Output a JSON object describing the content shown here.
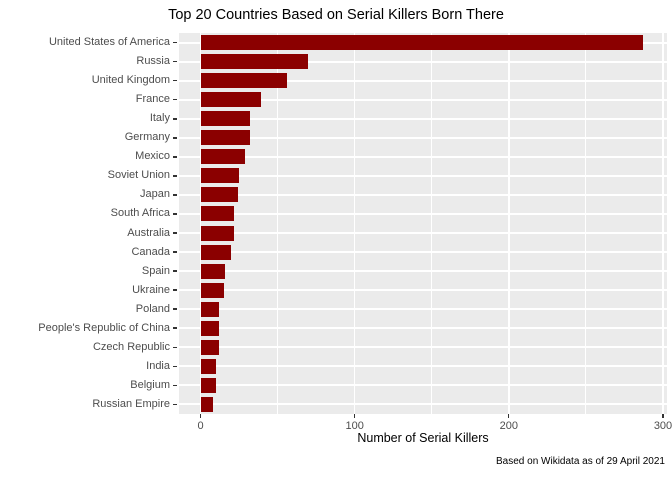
{
  "title": "Top 20 Countries Based on Serial Killers Born There",
  "chart_data": {
    "type": "bar",
    "orientation": "horizontal",
    "title": "Top 20 Countries Based on Serial Killers Born There",
    "xlabel": "Number of Serial Killers",
    "ylabel": "",
    "caption": "Based on Wikidata as of 29 April 2021",
    "categories": [
      "United States of America",
      "Russia",
      "United Kingdom",
      "France",
      "Italy",
      "Germany",
      "Mexico",
      "Soviet Union",
      "Japan",
      "South Africa",
      "Australia",
      "Canada",
      "Spain",
      "Ukraine",
      "Poland",
      "People's Republic of China",
      "Czech Republic",
      "India",
      "Belgium",
      "Russian Empire"
    ],
    "values": [
      287,
      70,
      56,
      39,
      32,
      32,
      29,
      25,
      24,
      22,
      22,
      20,
      16,
      15,
      12,
      12,
      12,
      10,
      10,
      8
    ],
    "xlim": [
      0,
      300
    ],
    "x_ticks": [
      0,
      100,
      200,
      300
    ],
    "x_minor_gridlines": [
      50,
      150,
      250
    ],
    "grid": true,
    "legend_position": "none",
    "colors": {
      "bar": "#8B0000",
      "panel_background": "#EBEBEB",
      "gridline": "#FFFFFF",
      "tick_mark": "#333333",
      "tick_label": "#4D4D4D",
      "text": "#000000"
    }
  }
}
